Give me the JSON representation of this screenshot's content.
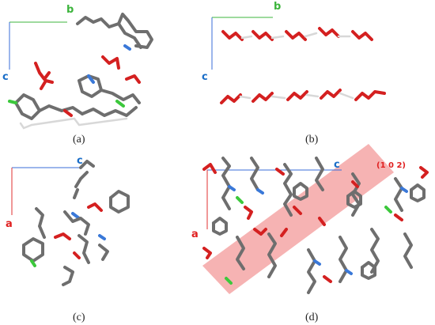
{
  "panels": [
    {
      "caption": "(a)",
      "axes": [
        "b",
        "c"
      ]
    },
    {
      "caption": "(b)",
      "axes": [
        "b",
        "c"
      ]
    },
    {
      "caption": "(c)",
      "axes": [
        "c",
        "a"
      ]
    },
    {
      "caption": "(d)",
      "axes": [
        "c",
        "a"
      ],
      "plane": "(1 0 2)"
    }
  ]
}
